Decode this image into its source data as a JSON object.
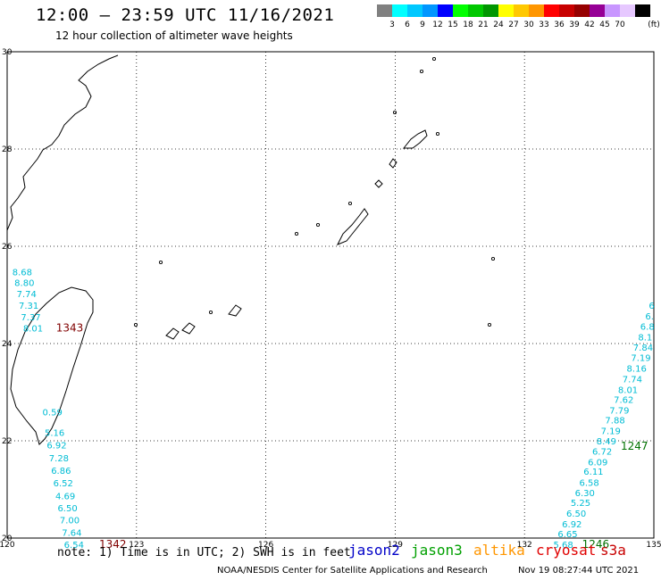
{
  "header": {
    "title": "12:00 – 23:59 UTC 11/16/2021",
    "subtitle": "12 hour collection of altimeter wave heights"
  },
  "legend": {
    "unit": "(ft)",
    "entries": [
      {
        "label": "",
        "color": "#808080"
      },
      {
        "label": "3",
        "color": "#00ffff"
      },
      {
        "label": "6",
        "color": "#00c8ff"
      },
      {
        "label": "9",
        "color": "#0096ff"
      },
      {
        "label": "12",
        "color": "#0000ff"
      },
      {
        "label": "15",
        "color": "#00ff00"
      },
      {
        "label": "18",
        "color": "#00c800"
      },
      {
        "label": "21",
        "color": "#009600"
      },
      {
        "label": "24",
        "color": "#ffff00"
      },
      {
        "label": "27",
        "color": "#ffc800"
      },
      {
        "label": "30",
        "color": "#ff9600"
      },
      {
        "label": "33",
        "color": "#ff0000"
      },
      {
        "label": "36",
        "color": "#c80000"
      },
      {
        "label": "39",
        "color": "#960000"
      },
      {
        "label": "42",
        "color": "#960096"
      },
      {
        "label": "45",
        "color": "#c896ff"
      },
      {
        "label": "70",
        "color": "#e6c8ff"
      },
      {
        "label": "",
        "color": "#000000"
      }
    ]
  },
  "map": {
    "lon_labels": [
      "120",
      "123",
      "126",
      "129",
      "132",
      "135"
    ],
    "lat_labels": [
      "20",
      "22",
      "24",
      "26",
      "28",
      "30"
    ],
    "extent": {
      "lon_min": 120,
      "lon_max": 135,
      "lat_min": 20,
      "lat_max": 30
    },
    "tracks": [
      {
        "name": "west-track-1",
        "color": "#00bcd4",
        "points": [
          {
            "lon": 120.35,
            "lat": 25.4,
            "value": "8.68"
          },
          {
            "lon": 120.4,
            "lat": 25.18,
            "value": "8.80"
          },
          {
            "lon": 120.45,
            "lat": 24.95,
            "value": "7.74"
          },
          {
            "lon": 120.5,
            "lat": 24.72,
            "value": "7.31"
          },
          {
            "lon": 120.55,
            "lat": 24.48,
            "value": "7.37"
          },
          {
            "lon": 120.6,
            "lat": 24.25,
            "value": "8.01"
          }
        ],
        "time_label": "1343",
        "time_color": "#800000",
        "time_at": {
          "lon": 121.45,
          "lat": 24.25
        }
      },
      {
        "name": "west-track-2",
        "color": "#00bcd4",
        "points": [
          {
            "lon": 121.05,
            "lat": 22.52,
            "value": "0.59"
          },
          {
            "lon": 121.1,
            "lat": 22.1,
            "value": "5.16"
          },
          {
            "lon": 121.15,
            "lat": 21.84,
            "value": "6.92"
          },
          {
            "lon": 121.2,
            "lat": 21.58,
            "value": "7.28"
          },
          {
            "lon": 121.25,
            "lat": 21.32,
            "value": "6.86"
          },
          {
            "lon": 121.3,
            "lat": 21.06,
            "value": "6.52"
          },
          {
            "lon": 121.35,
            "lat": 20.8,
            "value": "4.69"
          },
          {
            "lon": 121.4,
            "lat": 20.55,
            "value": "6.50"
          },
          {
            "lon": 121.45,
            "lat": 20.3,
            "value": "7.00"
          },
          {
            "lon": 121.5,
            "lat": 20.05,
            "value": "7.64"
          },
          {
            "lon": 121.55,
            "lat": 19.8,
            "value": "6.54"
          }
        ],
        "time_label": "1342",
        "time_color": "#800000",
        "time_at": {
          "lon": 122.45,
          "lat": 19.8
        }
      },
      {
        "name": "east-track",
        "color": "#00bcd4",
        "points": [
          {
            "lon": 134.95,
            "lat": 24.72,
            "value": "6"
          },
          {
            "lon": 134.9,
            "lat": 24.5,
            "value": "6."
          },
          {
            "lon": 134.85,
            "lat": 24.28,
            "value": "6.8"
          },
          {
            "lon": 134.8,
            "lat": 24.06,
            "value": "8.1"
          },
          {
            "lon": 134.75,
            "lat": 23.85,
            "value": "7.84"
          },
          {
            "lon": 134.7,
            "lat": 23.64,
            "value": "7.19"
          },
          {
            "lon": 134.6,
            "lat": 23.42,
            "value": "8.16"
          },
          {
            "lon": 134.5,
            "lat": 23.2,
            "value": "7.74"
          },
          {
            "lon": 134.4,
            "lat": 22.98,
            "value": "8.01"
          },
          {
            "lon": 134.3,
            "lat": 22.78,
            "value": "7.62"
          },
          {
            "lon": 134.2,
            "lat": 22.56,
            "value": "7.79"
          },
          {
            "lon": 134.1,
            "lat": 22.36,
            "value": "7.88"
          },
          {
            "lon": 134.0,
            "lat": 22.14,
            "value": "7.19"
          },
          {
            "lon": 133.9,
            "lat": 21.93,
            "value": "8.49"
          },
          {
            "lon": 133.8,
            "lat": 21.72,
            "value": "6.72"
          },
          {
            "lon": 133.7,
            "lat": 21.5,
            "value": "6.09"
          },
          {
            "lon": 133.6,
            "lat": 21.3,
            "value": "6.11"
          },
          {
            "lon": 133.5,
            "lat": 21.07,
            "value": "6.58"
          },
          {
            "lon": 133.4,
            "lat": 20.86,
            "value": "6.30"
          },
          {
            "lon": 133.3,
            "lat": 20.66,
            "value": "5.25"
          },
          {
            "lon": 133.2,
            "lat": 20.44,
            "value": "6.50"
          },
          {
            "lon": 133.1,
            "lat": 20.22,
            "value": "6.92"
          },
          {
            "lon": 133.0,
            "lat": 20.02,
            "value": "6.65"
          },
          {
            "lon": 132.9,
            "lat": 19.8,
            "value": "5.68"
          }
        ]
      }
    ],
    "time_labels": [
      {
        "text": "1247",
        "color": "#007000",
        "lon": 134.55,
        "lat": 21.82
      },
      {
        "text": "1246",
        "color": "#007000",
        "lon": 133.65,
        "lat": 19.8
      }
    ]
  },
  "note": "note: 1) Time is in UTC; 2) SWH is in feet",
  "satellites": [
    {
      "name": "jason2",
      "color": "#0000c8"
    },
    {
      "name": "jason3",
      "color": "#00a000"
    },
    {
      "name": "altika",
      "color": "#ff9600"
    },
    {
      "name": "cryosat",
      "color": "#e00000"
    },
    {
      "name": "s3a",
      "color": "#c80000"
    }
  ],
  "footer": {
    "org": "NOAA/NESDIS Center for Satellite Applications and Research",
    "timestamp": "Nov 19 08:27:44 UTC 2021"
  }
}
